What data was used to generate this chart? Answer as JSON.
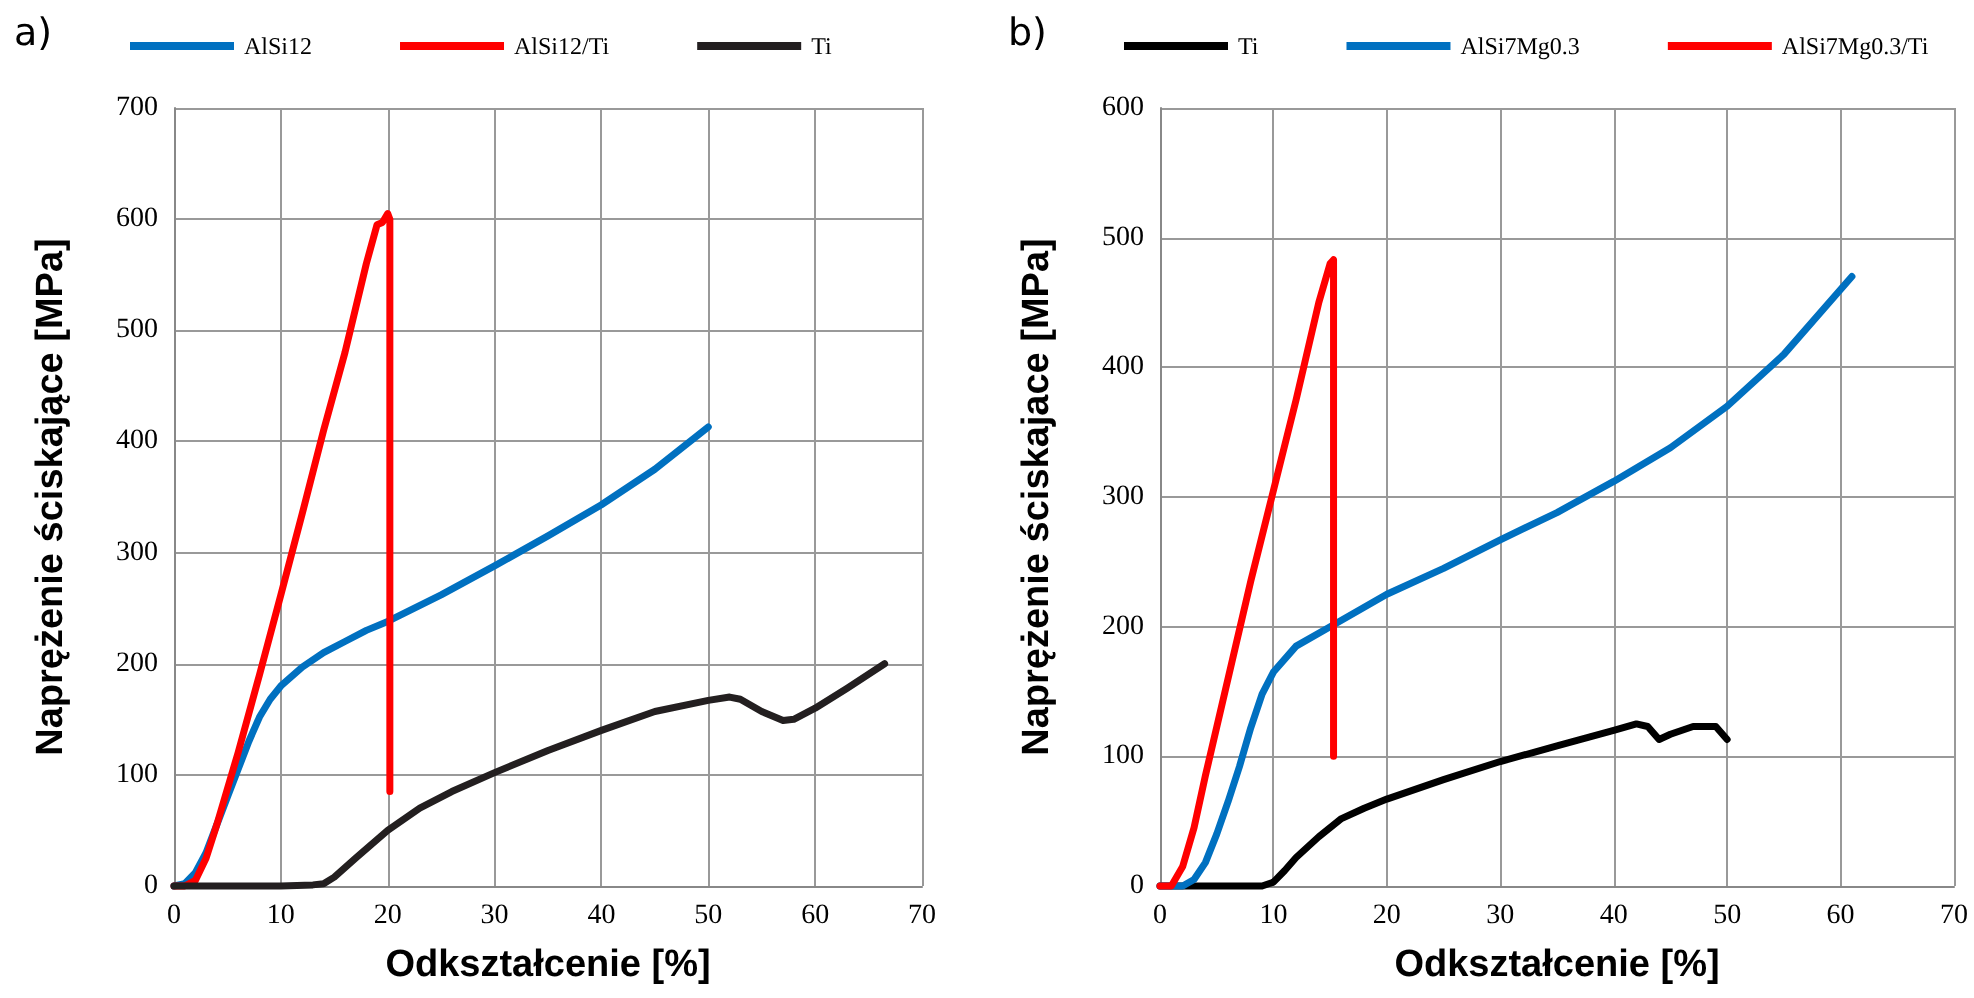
{
  "chart_data": [
    {
      "type": "line",
      "title": "a)",
      "xlabel": "Odkształcenie [%]",
      "ylabel": "Naprężenie ściskające [MPa]",
      "xlim": [
        0,
        70
      ],
      "xticks": [
        0,
        10,
        20,
        30,
        40,
        50,
        60,
        70
      ],
      "ylim": [
        0,
        700
      ],
      "yticks": [
        0,
        100,
        200,
        300,
        400,
        500,
        600,
        700
      ],
      "grid": true,
      "legend": "top",
      "marker": "none",
      "line_style": "solid",
      "series": [
        {
          "name": "AlSi12",
          "color": "#0070c0",
          "x": [
            0,
            1,
            2,
            3,
            4,
            5,
            6,
            7,
            8,
            9,
            10,
            12,
            14,
            16,
            18,
            20,
            25,
            30,
            35,
            40,
            45,
            50
          ],
          "values": [
            0,
            2,
            12,
            30,
            55,
            80,
            105,
            130,
            152,
            168,
            180,
            197,
            210,
            220,
            230,
            238,
            262,
            288,
            315,
            343,
            375,
            413
          ]
        },
        {
          "name": "AlSi12/Ti",
          "color": "#ff0000",
          "x": [
            0,
            1,
            2,
            3,
            4,
            6,
            8,
            10,
            12,
            14,
            16,
            18,
            19,
            19.5,
            20,
            20.2,
            20.2
          ],
          "values": [
            0,
            0,
            5,
            25,
            55,
            120,
            190,
            262,
            335,
            410,
            480,
            560,
            595,
            597,
            605,
            600,
            85
          ]
        },
        {
          "name": "Ti",
          "color": "#231f20",
          "x": [
            0,
            10,
            13,
            14,
            15,
            17,
            20,
            23,
            26,
            30,
            35,
            40,
            45,
            50,
            52,
            53,
            55,
            57,
            58,
            60,
            63,
            66.5
          ],
          "values": [
            0,
            0,
            1,
            2,
            8,
            25,
            50,
            70,
            85,
            102,
            122,
            140,
            157,
            167,
            170,
            168,
            157,
            149,
            150,
            160,
            178,
            200
          ]
        }
      ]
    },
    {
      "type": "line",
      "title": "b)",
      "xlabel": "Odkształcenie [%]",
      "ylabel": "Naprężenie ściskajace [MPa]",
      "xlim": [
        0,
        70
      ],
      "xticks": [
        0,
        10,
        20,
        30,
        40,
        50,
        60,
        70
      ],
      "ylim": [
        0,
        600
      ],
      "yticks": [
        0,
        100,
        200,
        300,
        400,
        500,
        600
      ],
      "grid": true,
      "legend": "top",
      "marker": "none",
      "line_style": "solid",
      "series": [
        {
          "name": "Ti",
          "color": "#000000",
          "x": [
            0,
            9,
            10,
            11,
            12,
            14,
            16,
            18,
            20,
            25,
            30,
            35,
            40,
            42,
            43,
            44,
            45,
            47,
            49,
            50
          ],
          "values": [
            0,
            0,
            3,
            12,
            22,
            38,
            52,
            60,
            67,
            82,
            96,
            108,
            120,
            125,
            123,
            113,
            117,
            123,
            123,
            113
          ]
        },
        {
          "name": "AlSi7Mg0.3",
          "color": "#0070c0",
          "x": [
            0,
            2,
            3,
            4,
            5,
            6,
            7,
            8,
            9,
            10,
            12,
            15,
            20,
            25,
            30,
            35,
            40,
            45,
            50,
            55,
            61
          ],
          "values": [
            0,
            0,
            5,
            18,
            40,
            65,
            92,
            122,
            148,
            165,
            185,
            200,
            225,
            245,
            267,
            288,
            312,
            338,
            370,
            410,
            470
          ]
        },
        {
          "name": "AlSi7Mg0.3/Ti",
          "color": "#ff0000",
          "x": [
            0,
            1,
            2,
            3,
            4,
            6,
            8,
            10,
            12,
            14,
            15,
            15.3,
            15.3
          ],
          "values": [
            0,
            0,
            15,
            45,
            85,
            160,
            235,
            305,
            375,
            450,
            480,
            483,
            100
          ]
        }
      ]
    }
  ]
}
